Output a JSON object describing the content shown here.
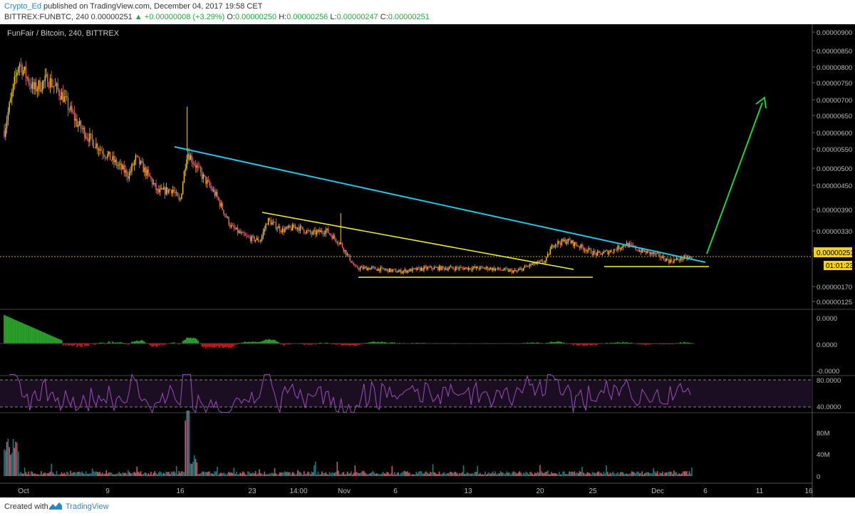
{
  "header": {
    "author": "Crypto_Ed",
    "published": "published on TradingView.com, December 04, 2017 19:58 CET",
    "symbol": "BITTREX:FUNBTC, 240",
    "last": "0.00000251",
    "change": "▲ +0.00000008 (+3.29%)",
    "o_label": "O:",
    "o": "0.00000250",
    "h_label": "H:",
    "h": "0.00000256",
    "l_label": "L:",
    "l": "0.00000247",
    "c_label": "C:",
    "c": "0.00000251"
  },
  "chart_title": "FunFair / Bitcoin, 240, BITTREX",
  "footer": {
    "created_with": "Created with",
    "brand": "TradingView"
  },
  "colors": {
    "background": "#000000",
    "up_candle": "#f5d020",
    "down_candle": "#e86a7a",
    "trend_cyan": "#29c3e0",
    "trend_yellow": "#f0f03c",
    "arrow_green": "#27d13b",
    "macd_pos": "#2aa12a",
    "macd_neg": "#c81616",
    "rsi_line": "#9b4fb8",
    "volume": "#1f8f8f"
  },
  "chart_data": [
    {
      "type": "candlestick",
      "title": "FunFair / Bitcoin, 240, BITTREX",
      "x_ticks": [
        "Oct",
        "9",
        "16",
        "23",
        "14:00",
        "Nov",
        "6",
        "13",
        "20",
        "25",
        "Dec",
        "6",
        "11",
        "16"
      ],
      "y_ticks": [
        "0.00000900",
        "0.00000850",
        "0.00000800",
        "0.00000750",
        "0.00000700",
        "0.00000650",
        "0.00000600",
        "0.00000550",
        "0.00000500",
        "0.00000450",
        "0.00000390",
        "0.00000330",
        "0.00000270",
        "0.00000170",
        "0.00000125"
      ],
      "last_price": "0.00000251",
      "countdown": "01:01:23",
      "price_path": [
        [
          0,
          6.2e-06
        ],
        [
          2,
          8.2e-06
        ],
        [
          4,
          7.4e-06
        ],
        [
          6,
          7.7e-06
        ],
        [
          8,
          7.2e-06
        ],
        [
          10,
          6.4e-06
        ],
        [
          12,
          5.9e-06
        ],
        [
          15,
          5.3e-06
        ],
        [
          17,
          4.9e-06
        ],
        [
          18,
          5.4e-06
        ],
        [
          20,
          4.8e-06
        ],
        [
          21,
          4.4e-06
        ],
        [
          23,
          4.5e-06
        ],
        [
          24,
          4.1e-06
        ],
        [
          25,
          5.6e-06
        ],
        [
          27,
          4.9e-06
        ],
        [
          29,
          4.3e-06
        ],
        [
          31,
          3.4e-06
        ],
        [
          33,
          3.1e-06
        ],
        [
          35,
          3e-06
        ],
        [
          36,
          3.6e-06
        ],
        [
          38,
          3.3e-06
        ],
        [
          40,
          3.4e-06
        ],
        [
          42,
          3.2e-06
        ],
        [
          44,
          3.3e-06
        ],
        [
          46,
          2.9e-06
        ],
        [
          48,
          2.2e-06
        ],
        [
          50,
          2.2e-06
        ],
        [
          54,
          2.1e-06
        ],
        [
          58,
          2.2e-06
        ],
        [
          62,
          2.2e-06
        ],
        [
          66,
          2.2e-06
        ],
        [
          70,
          2.1e-06
        ],
        [
          72,
          2.3e-06
        ],
        [
          74,
          2.4e-06
        ],
        [
          75,
          2.9e-06
        ],
        [
          77,
          3e-06
        ],
        [
          79,
          2.8e-06
        ],
        [
          81,
          2.6e-06
        ],
        [
          83,
          2.7e-06
        ],
        [
          85,
          2.9e-06
        ],
        [
          87,
          2.7e-06
        ],
        [
          89,
          2.6e-06
        ],
        [
          91,
          2.4e-06
        ],
        [
          93,
          2.5e-06
        ],
        [
          94,
          2.5e-06
        ]
      ],
      "series": [
        {
          "name": "MACD histogram",
          "type": "bar",
          "y_ticks": [
            "0.0000",
            "0.0000",
            "-0.0000"
          ]
        },
        {
          "name": "RSI",
          "type": "line",
          "y_ticks": [
            "80.0000",
            "40.0000"
          ],
          "bands": [
            70,
            30
          ]
        },
        {
          "name": "Volume",
          "type": "bar",
          "y_ticks": [
            "80M",
            "40M",
            "0"
          ]
        }
      ]
    }
  ]
}
